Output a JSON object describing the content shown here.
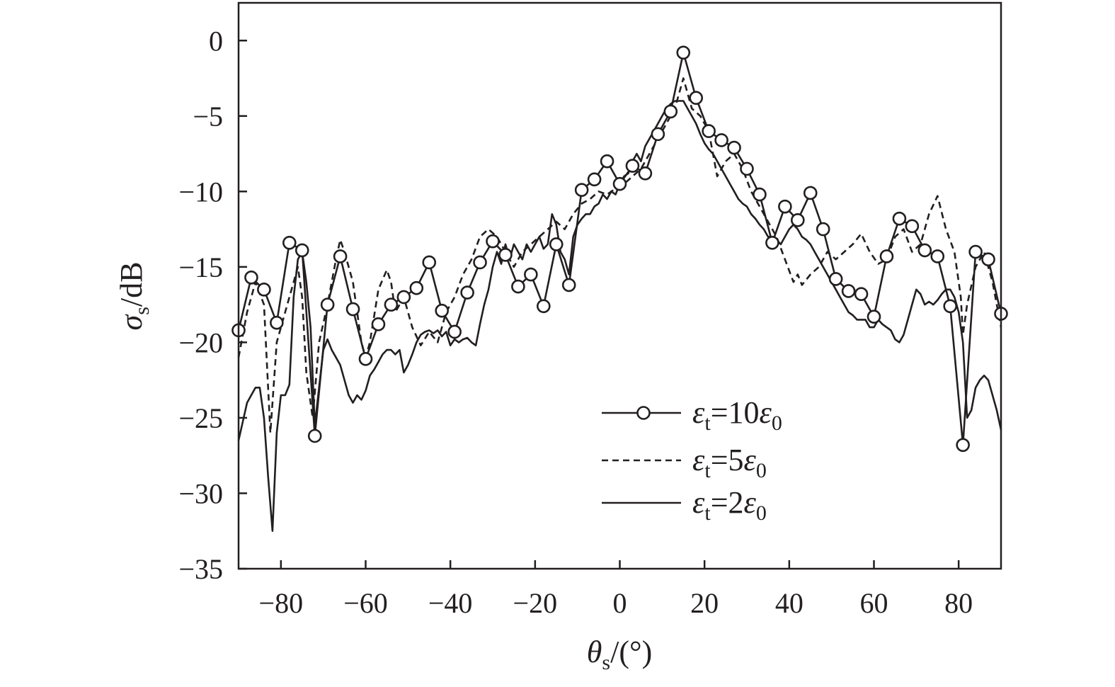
{
  "chart_data": {
    "type": "line",
    "x_label": {
      "symbol": "θ",
      "sub": "s",
      "rest": "/(°)"
    },
    "y_label": {
      "symbol": "σ",
      "sub": "s",
      "rest": "/dB"
    },
    "xlim": [
      -90,
      90
    ],
    "ylim": [
      -35,
      2.5
    ],
    "x_ticks": [
      -80,
      -60,
      -40,
      -20,
      0,
      20,
      40,
      60,
      80
    ],
    "y_ticks": [
      0,
      -5,
      -10,
      -15,
      -20,
      -25,
      -30,
      -35
    ],
    "x_tick_labels": [
      "−80",
      "−60",
      "−40",
      "−20",
      "0",
      "20",
      "40",
      "60",
      "80"
    ],
    "y_tick_labels": [
      "0",
      "−5",
      "−10",
      "−15",
      "−20",
      "−25",
      "−30",
      "−35"
    ],
    "grid": false,
    "legend_position": "lower-center",
    "series": [
      {
        "legend": {
          "eps": "ε",
          "sub": "t",
          "rest": "=10",
          "eps2": "ε",
          "sub2": "0"
        },
        "style": "solid-circles",
        "x": [
          -90,
          -87,
          -84,
          -81,
          -78,
          -75,
          -72,
          -69,
          -66,
          -63,
          -60,
          -57,
          -54,
          -51,
          -48,
          -45,
          -42,
          -39,
          -36,
          -33,
          -30,
          -27,
          -24,
          -21,
          -18,
          -15,
          -12,
          -9,
          -6,
          -3,
          0,
          3,
          6,
          9,
          12,
          15,
          18,
          21,
          24,
          27,
          30,
          33,
          36,
          39,
          42,
          45,
          48,
          51,
          54,
          57,
          60,
          63,
          66,
          69,
          72,
          75,
          78,
          81,
          84,
          87,
          90
        ],
        "y": [
          -19.2,
          -15.7,
          -16.5,
          -18.7,
          -13.4,
          -13.9,
          -26.2,
          -17.5,
          -14.3,
          -17.8,
          -21.1,
          -18.8,
          -17.5,
          -17.0,
          -16.4,
          -14.7,
          -17.9,
          -19.3,
          -16.7,
          -14.7,
          -13.3,
          -14.2,
          -16.3,
          -15.5,
          -17.6,
          -13.5,
          -16.2,
          -9.9,
          -9.2,
          -8.0,
          -9.5,
          -8.3,
          -8.8,
          -6.2,
          -4.7,
          -0.8,
          -3.8,
          -6.0,
          -6.6,
          -7.1,
          -8.5,
          -10.2,
          -13.4,
          -11.0,
          -11.9,
          -10.1,
          -12.5,
          -15.8,
          -16.6,
          -16.8,
          -18.3,
          -14.3,
          -11.8,
          -12.3,
          -13.9,
          -14.3,
          -17.6,
          -26.8,
          -14.0,
          -14.5,
          -18.1
        ]
      },
      {
        "legend": {
          "eps": "ε",
          "sub": "t",
          "rest": "=5",
          "eps2": "ε",
          "sub2": "0"
        },
        "style": "dashed",
        "x": [
          -90,
          -88,
          -86,
          -84,
          -82.5,
          -81,
          -79,
          -77,
          -76,
          -75,
          -74,
          -72.5,
          -71,
          -69,
          -67,
          -66,
          -65,
          -63,
          -61,
          -60,
          -59,
          -57,
          -55,
          -54,
          -53,
          -51,
          -49,
          -47,
          -45,
          -43,
          -41,
          -39,
          -37,
          -35,
          -33,
          -31,
          -29,
          -27,
          -25,
          -23,
          -21,
          -19,
          -17,
          -15,
          -13,
          -11,
          -9,
          -7,
          -5,
          -3,
          -1,
          1,
          3,
          5,
          7,
          9,
          11,
          13,
          15,
          17,
          19,
          21,
          23,
          25,
          27,
          29,
          31,
          33,
          35,
          37,
          39,
          41,
          42,
          43,
          45,
          47,
          49,
          51,
          53,
          55,
          57,
          59,
          61,
          63,
          65,
          67,
          69,
          71,
          73,
          75,
          77,
          79,
          80.5,
          81,
          82,
          84,
          86,
          88,
          90
        ],
        "y": [
          -21,
          -18,
          -16,
          -17.5,
          -26,
          -20,
          -18,
          -16,
          -15,
          -17,
          -22,
          -25,
          -20,
          -17.5,
          -14.5,
          -13.2,
          -14,
          -16,
          -20,
          -21,
          -20,
          -16.5,
          -15.2,
          -16,
          -18,
          -17,
          -19,
          -20.2,
          -19.3,
          -20,
          -18,
          -17,
          -15.5,
          -14.5,
          -13,
          -12.5,
          -13,
          -14,
          -15,
          -14,
          -13.5,
          -13,
          -12.5,
          -12,
          -12.5,
          -11.5,
          -10.8,
          -10.5,
          -10,
          -10.2,
          -9.8,
          -9.5,
          -9,
          -8.5,
          -7.5,
          -6.5,
          -5.5,
          -4.5,
          -2.5,
          -4.5,
          -5,
          -6,
          -9,
          -8,
          -7.5,
          -8.5,
          -10,
          -11,
          -12,
          -13,
          -14.5,
          -16,
          -15.5,
          -16.2,
          -15.5,
          -15,
          -14,
          -14.5,
          -14,
          -13.5,
          -12.8,
          -14,
          -14.8,
          -14.5,
          -13,
          -12.5,
          -14,
          -13.5,
          -11.5,
          -10.3,
          -12.5,
          -14,
          -17,
          -19.5,
          -17.5,
          -15,
          -14,
          -16,
          -19
        ]
      },
      {
        "legend": {
          "eps": "ε",
          "sub": "t",
          "rest": "=2",
          "eps2": "ε",
          "sub2": "0"
        },
        "style": "solid",
        "x": [
          -90,
          -88,
          -86,
          -85,
          -84,
          -83,
          -82,
          -81,
          -80,
          -79,
          -78,
          -77,
          -76,
          -75,
          -74,
          -73,
          -72,
          -71,
          -70,
          -69,
          -68,
          -67,
          -66,
          -65,
          -64,
          -63,
          -62,
          -61,
          -60,
          -59,
          -58,
          -57,
          -56,
          -55,
          -54,
          -53,
          -52,
          -51,
          -50,
          -49,
          -48,
          -47,
          -46,
          -45,
          -44,
          -43,
          -42,
          -41,
          -40,
          -39,
          -38,
          -37,
          -36,
          -35,
          -34,
          -33,
          -32,
          -31,
          -30,
          -29,
          -28,
          -27,
          -26,
          -25,
          -24,
          -23,
          -22,
          -21,
          -20,
          -19,
          -18,
          -17,
          -16,
          -15,
          -14,
          -13,
          -12,
          -11,
          -10,
          -9,
          -8,
          -7,
          -6,
          -5,
          -4,
          -3,
          -2,
          -1,
          0,
          1,
          2,
          3,
          4,
          5,
          6,
          7,
          8,
          9,
          10,
          11,
          12,
          13,
          14,
          15,
          16,
          17,
          18,
          19,
          20,
          21,
          22,
          23,
          24,
          25,
          26,
          27,
          28,
          29,
          30,
          31,
          32,
          33,
          34,
          35,
          36,
          37,
          38,
          39,
          40,
          41,
          42,
          43,
          44,
          45,
          46,
          47,
          48,
          49,
          50,
          51,
          52,
          53,
          54,
          55,
          56,
          57,
          58,
          59,
          60,
          61,
          62,
          63,
          64,
          65,
          66,
          67,
          68,
          69,
          70,
          71,
          72,
          73,
          74,
          75,
          76,
          77,
          78,
          79,
          80,
          81,
          82,
          83,
          84,
          85,
          86,
          87,
          88,
          89,
          90
        ],
        "y": [
          -26.5,
          -24,
          -23,
          -23,
          -25,
          -29,
          -32.5,
          -26,
          -23.5,
          -23.5,
          -22.8,
          -17,
          -14.5,
          -14,
          -16,
          -19,
          -25.5,
          -23,
          -20.5,
          -19.8,
          -20.5,
          -21,
          -21.5,
          -22.5,
          -23.5,
          -24,
          -23.5,
          -23.8,
          -23.2,
          -22.2,
          -21.8,
          -21.3,
          -20.8,
          -20.5,
          -20.5,
          -20.8,
          -20.5,
          -22,
          -21.5,
          -20.8,
          -20,
          -19.5,
          -19.3,
          -19.2,
          -19.4,
          -19.2,
          -19.6,
          -19.3,
          -20.2,
          -19.8,
          -20,
          -19.8,
          -19.7,
          -20,
          -20.2,
          -18.8,
          -17.5,
          -16.5,
          -15,
          -14,
          -14.8,
          -13.5,
          -14.5,
          -13.5,
          -14,
          -14.5,
          -13.5,
          -14,
          -13.5,
          -13,
          -13.8,
          -13.5,
          -11.5,
          -12.2,
          -14,
          -14.5,
          -15.5,
          -13,
          -12.2,
          -11.8,
          -11.5,
          -11.5,
          -11,
          -10.8,
          -10.2,
          -10.5,
          -10,
          -10.2,
          -9.5,
          -9,
          -8.8,
          -8,
          -7.5,
          -8,
          -7,
          -6.5,
          -6,
          -5.5,
          -5,
          -4.5,
          -4.2,
          -4,
          -4,
          -4,
          -4.5,
          -5,
          -5.5,
          -6.2,
          -6.8,
          -7.2,
          -7.5,
          -8,
          -8.5,
          -9,
          -9.5,
          -10,
          -10.5,
          -10.8,
          -11,
          -11.5,
          -11.8,
          -12.2,
          -12.5,
          -13,
          -13,
          -13.2,
          -13.5,
          -13,
          -12.5,
          -12.2,
          -12.5,
          -13,
          -13.2,
          -13.5,
          -14,
          -14.5,
          -15,
          -15.5,
          -16,
          -16.5,
          -17,
          -17.5,
          -18,
          -18.2,
          -18.5,
          -18.5,
          -18.5,
          -19,
          -19,
          -18.5,
          -18.8,
          -19,
          -19.2,
          -19.8,
          -20,
          -19.5,
          -18.5,
          -17.5,
          -16.5,
          -16.8,
          -17.5,
          -17.3,
          -17.5,
          -17.2,
          -16.8,
          -16.5,
          -16.5,
          -17,
          -18,
          -20,
          -25,
          -24.5,
          -23,
          -22.5,
          -22.2,
          -22.5,
          -23.5,
          -24.5,
          -25.8
        ]
      }
    ]
  }
}
